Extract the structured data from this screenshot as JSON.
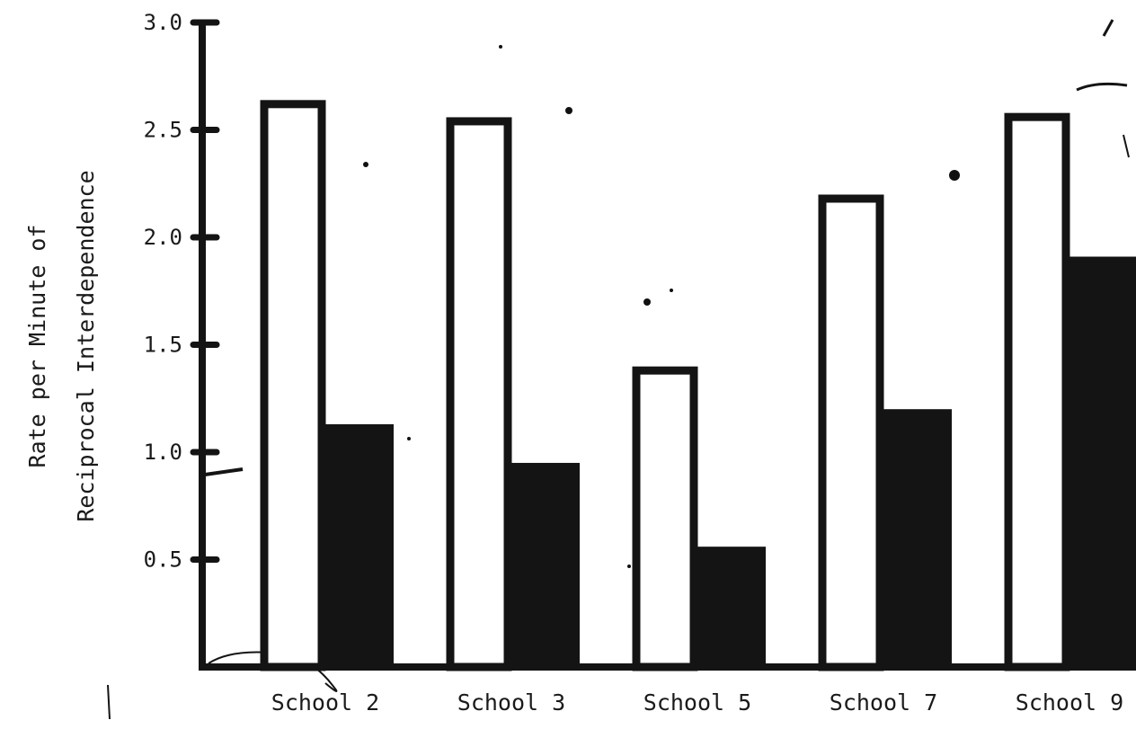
{
  "chart_data": {
    "type": "bar",
    "categories": [
      "School 2",
      "School 3",
      "School 5",
      "School 7",
      "School 9"
    ],
    "series": [
      {
        "style": "outlined",
        "values": [
          2.62,
          2.54,
          1.38,
          2.18,
          2.56
        ]
      },
      {
        "style": "filled",
        "values": [
          1.13,
          0.95,
          0.56,
          1.2,
          1.91
        ]
      }
    ],
    "ylabel_lines": [
      "Rate per Minute of",
      "Reciprocal Interdependence"
    ],
    "xlabel": "",
    "title": "",
    "ylim": [
      0,
      3.0
    ],
    "yticks": [
      0.5,
      1.0,
      1.5,
      2.0,
      2.5,
      3.0
    ],
    "ytick_labels": [
      "0.5",
      "1.0",
      "1.5",
      "2.0",
      "2.5",
      "3.0"
    ],
    "grid": false,
    "legend": "none",
    "colors": {
      "ink": "#141414",
      "paper": "#ffffff"
    }
  }
}
